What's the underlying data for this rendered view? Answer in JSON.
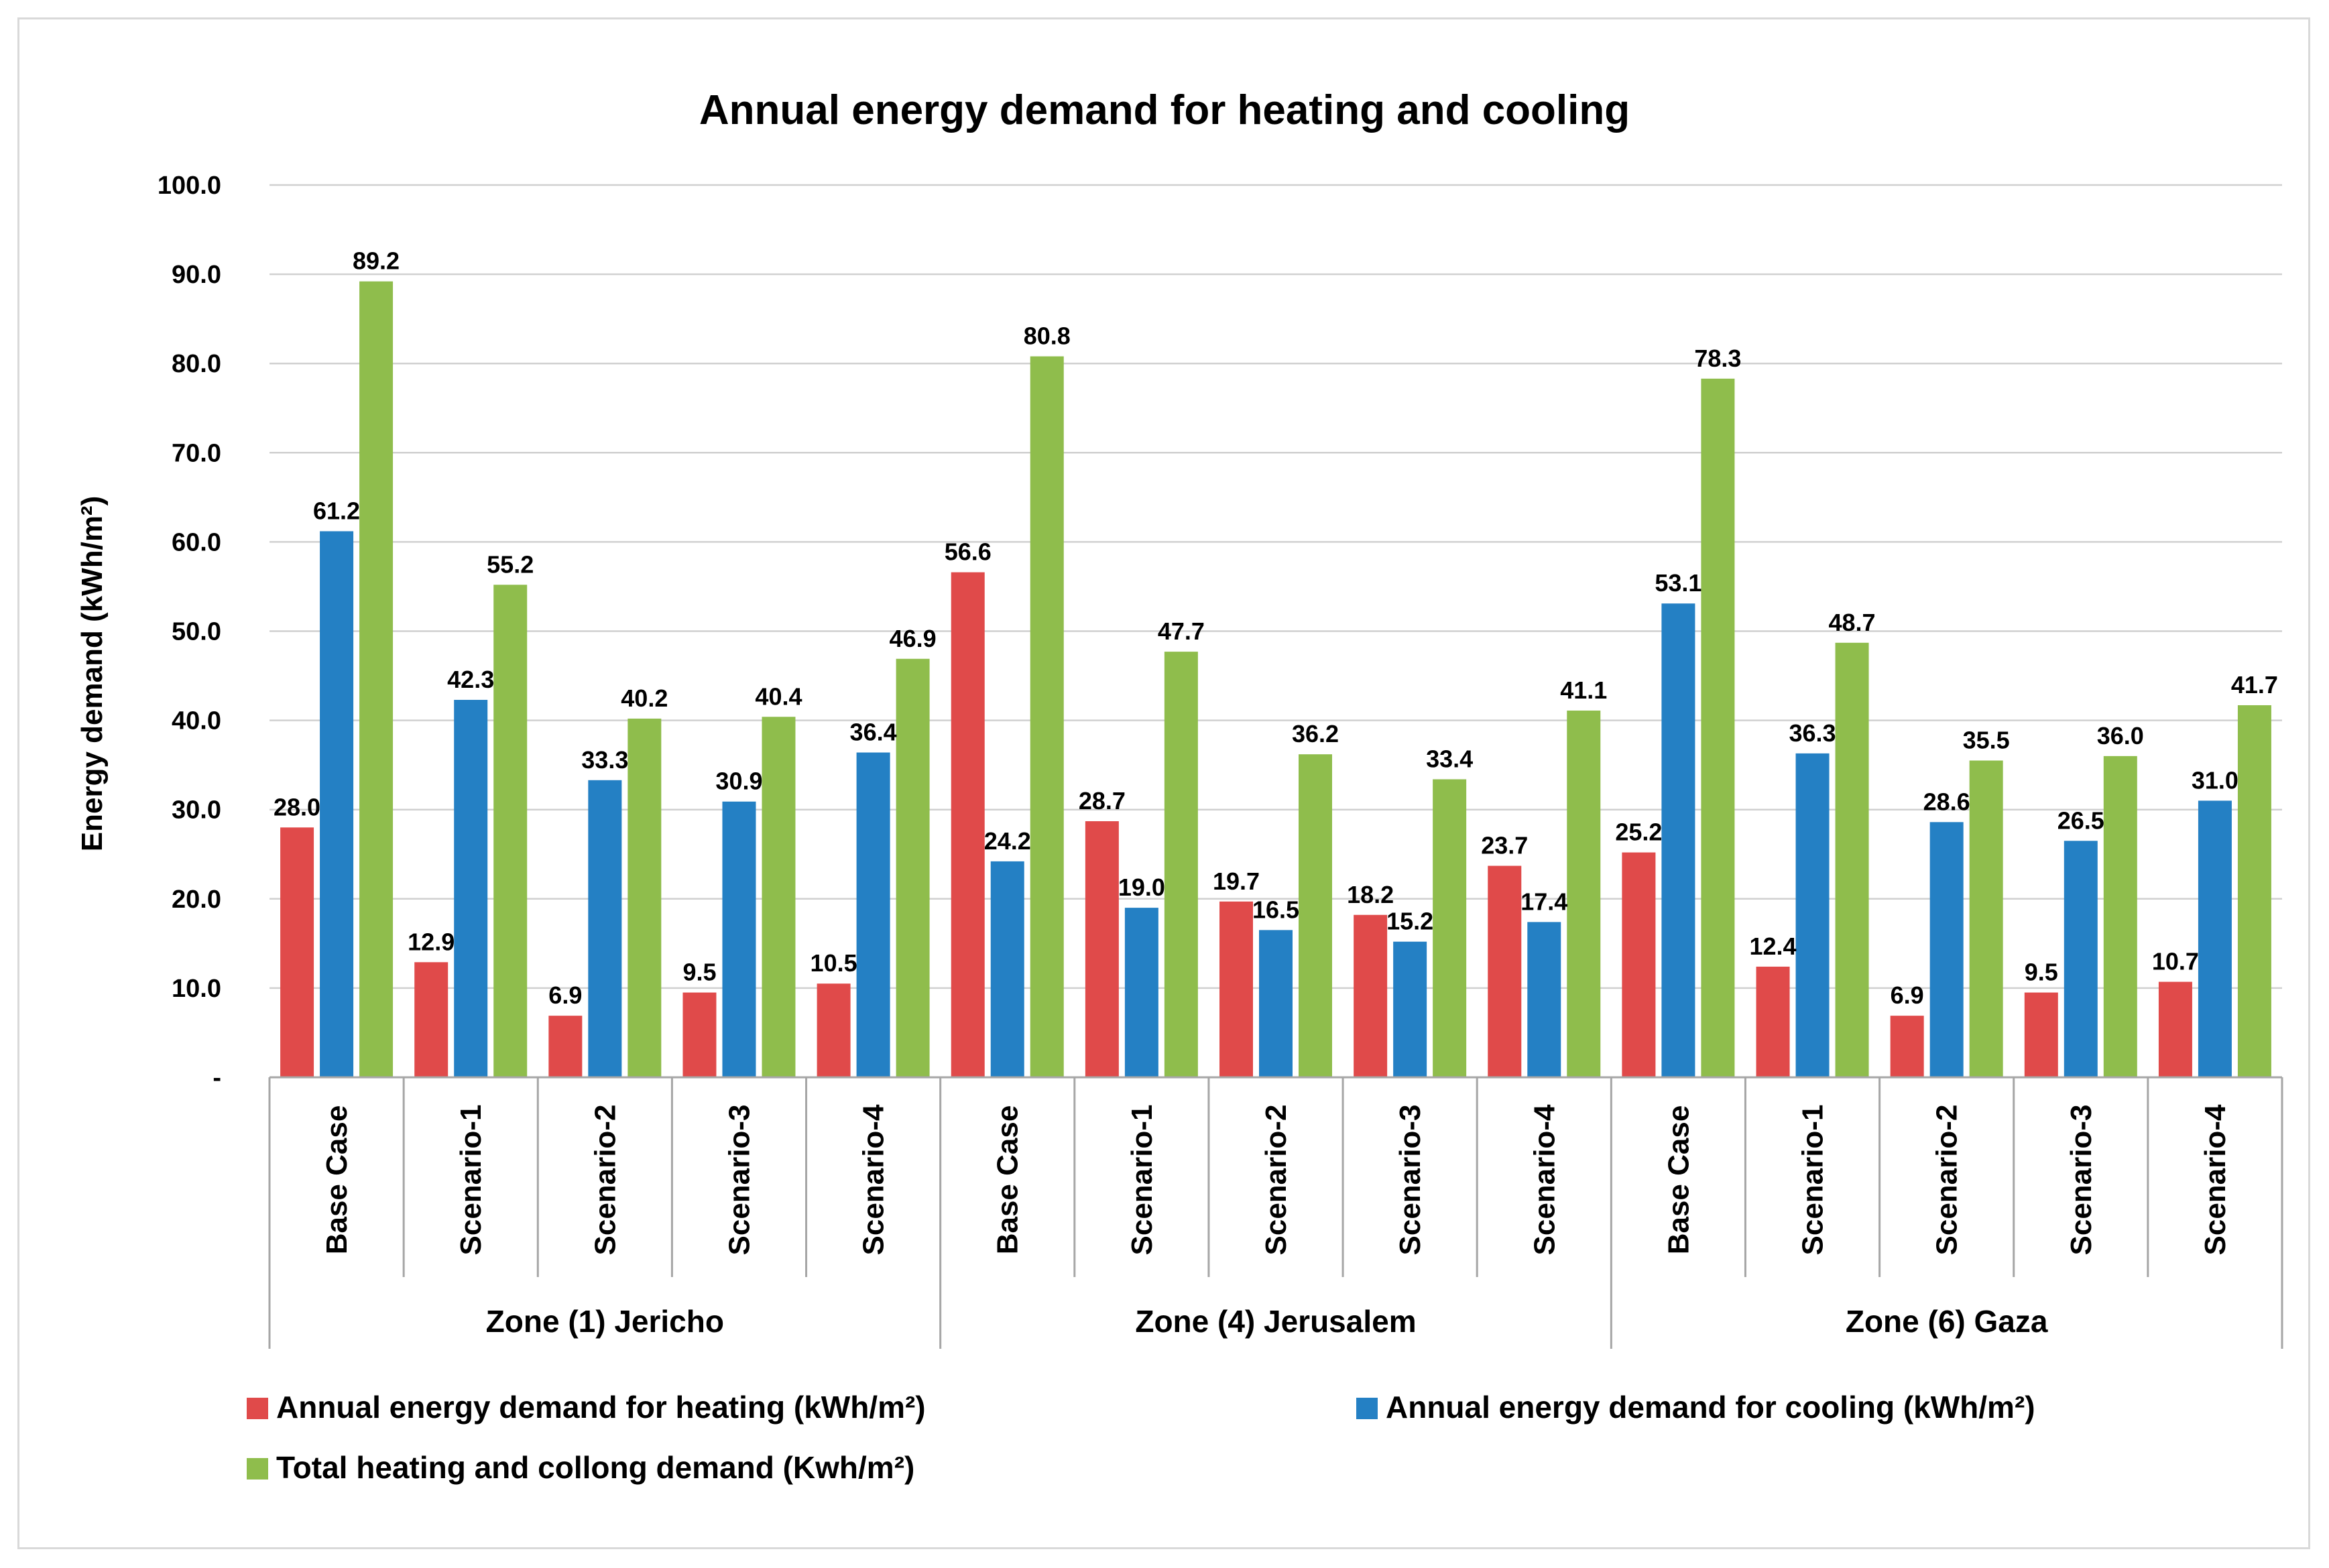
{
  "chart_data": {
    "type": "bar",
    "title": "Annual energy demand for heating and cooling",
    "ylabel": "Energy demand (kWh/m²)",
    "xlabel": "",
    "ylim": [
      0,
      100
    ],
    "yticks": [
      "-",
      "10.0",
      "20.0",
      "30.0",
      "40.0",
      "50.0",
      "60.0",
      "70.0",
      "80.0",
      "90.0",
      "100.0"
    ],
    "groups": [
      {
        "name": "Zone (1) Jericho",
        "categories": [
          "Base Case",
          "Scenario-1",
          "Scenario-2",
          "Scenario-3",
          "Scenario-4"
        ]
      },
      {
        "name": "Zone (4) Jerusalem",
        "categories": [
          "Base Case",
          "Scenario-1",
          "Scenario-2",
          "Scenario-3",
          "Scenario-4"
        ]
      },
      {
        "name": "Zone (6) Gaza",
        "categories": [
          "Base Case",
          "Scenario-1",
          "Scenario-2",
          "Scenario-3",
          "Scenario-4"
        ]
      }
    ],
    "series": [
      {
        "name": "Annual energy demand for heating (kWh/m²)",
        "color": "#e04a4a",
        "values": [
          28.0,
          12.9,
          6.9,
          9.5,
          10.5,
          56.6,
          28.7,
          19.7,
          18.2,
          23.7,
          25.2,
          12.4,
          6.9,
          9.5,
          10.7
        ],
        "labels": [
          "28.0",
          "12.9",
          "6.9",
          "9.5",
          "10.5",
          "56.6",
          "28.7",
          "19.7",
          "18.2",
          "23.7",
          "25.2",
          "12.4",
          "6.9",
          "9.5",
          "10.7"
        ]
      },
      {
        "name": "Annual energy demand for cooling (kWh/m²)",
        "color": "#2480c4",
        "values": [
          61.2,
          42.3,
          33.3,
          30.9,
          36.4,
          24.2,
          19.0,
          16.5,
          15.2,
          17.4,
          53.1,
          36.3,
          28.6,
          26.5,
          31.0
        ],
        "labels": [
          "61.2",
          "42.3",
          "33.3",
          "30.9",
          "36.4",
          "24.2",
          "19.0",
          "16.5",
          "15.2",
          "17.4",
          "53.1",
          "36.3",
          "28.6",
          "26.5",
          "31.0"
        ]
      },
      {
        "name": "Total heating and collong demand (Kwh/m²)",
        "color": "#8fbd4c",
        "values": [
          89.2,
          55.2,
          40.2,
          40.4,
          46.9,
          80.8,
          47.7,
          36.2,
          33.4,
          41.1,
          78.3,
          48.7,
          35.5,
          36.0,
          41.7
        ],
        "labels": [
          "89.2",
          "55.2",
          "40.2",
          "40.4",
          "46.9",
          "80.8",
          "47.7",
          "36.2",
          "33.4",
          "41.1",
          "78.3",
          "48.7",
          "35.5",
          "36.0",
          "41.7"
        ]
      }
    ],
    "legend_position": "bottom",
    "grid": true
  }
}
